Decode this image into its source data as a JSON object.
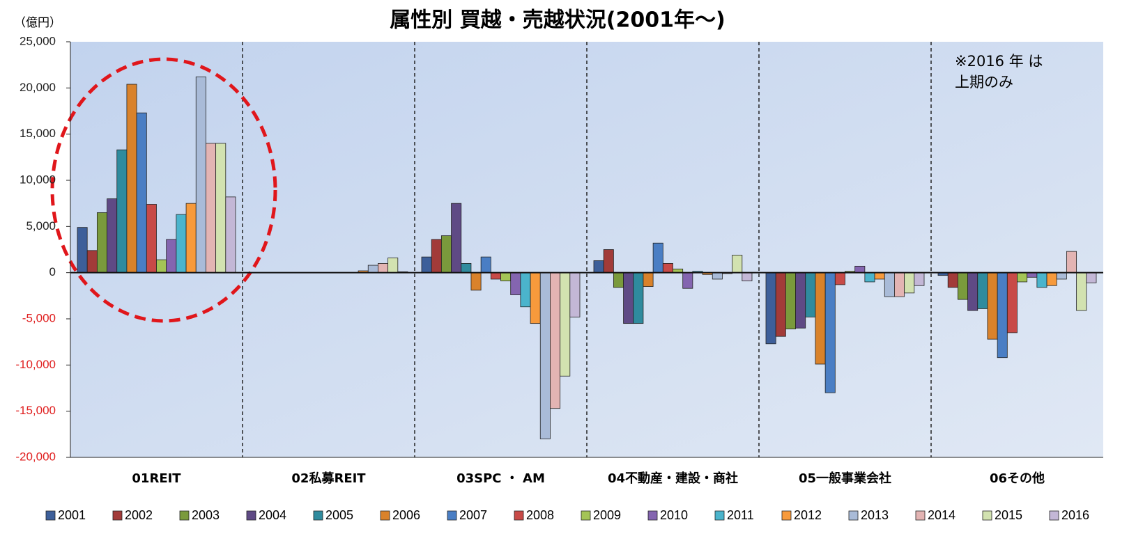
{
  "chart_data": {
    "type": "bar",
    "title": "属性別 買越・売越状況(2001年～)",
    "y_unit": "（億円）",
    "annotation": [
      "※2016 年 は",
      "上期のみ"
    ],
    "categories": [
      "01REIT",
      "02私募REIT",
      "03SPC ・ AM",
      "04不動産・建設・商社",
      "05一般事業会社",
      "06その他"
    ],
    "series": [
      {
        "name": "2001",
        "color": "#3d5f9a",
        "values": [
          4900,
          0,
          1700,
          1300,
          -7700,
          -300
        ]
      },
      {
        "name": "2002",
        "color": "#a23b39",
        "values": [
          2400,
          0,
          3600,
          2500,
          -6900,
          -1600
        ]
      },
      {
        "name": "2003",
        "color": "#7a9a3c",
        "values": [
          6500,
          0,
          4000,
          -1600,
          -6100,
          -2900
        ]
      },
      {
        "name": "2004",
        "color": "#5f4a85",
        "values": [
          8000,
          0,
          7500,
          -5500,
          -6000,
          -4100
        ]
      },
      {
        "name": "2005",
        "color": "#2f8b9e",
        "values": [
          13300,
          0,
          1000,
          -5500,
          -4800,
          -3900
        ]
      },
      {
        "name": "2006",
        "color": "#d9822b",
        "values": [
          20400,
          0,
          -1900,
          -1500,
          -9900,
          -7200
        ]
      },
      {
        "name": "2007",
        "color": "#4a7ec4",
        "values": [
          17300,
          0,
          1700,
          3200,
          -13000,
          -9200
        ]
      },
      {
        "name": "2008",
        "color": "#c84a47",
        "values": [
          7400,
          0,
          -700,
          1000,
          -1300,
          -6500
        ]
      },
      {
        "name": "2009",
        "color": "#a4c456",
        "values": [
          1400,
          0,
          -900,
          400,
          150,
          -1000
        ]
      },
      {
        "name": "2010",
        "color": "#8465b0",
        "values": [
          3600,
          0,
          -2400,
          -1700,
          700,
          -500
        ]
      },
      {
        "name": "2011",
        "color": "#4bb4cc",
        "values": [
          6300,
          0,
          -3700,
          150,
          -1000,
          -1600
        ]
      },
      {
        "name": "2012",
        "color": "#f79a3c",
        "values": [
          7500,
          200,
          -5500,
          -200,
          -700,
          -1400
        ]
      },
      {
        "name": "2013",
        "color": "#a9bbd8",
        "values": [
          21200,
          800,
          -18000,
          -700,
          -2600,
          -700
        ]
      },
      {
        "name": "2014",
        "color": "#e3b4b3",
        "values": [
          14000,
          1000,
          -14700,
          -100,
          -2600,
          2300
        ]
      },
      {
        "name": "2015",
        "color": "#d2e2b0",
        "values": [
          14000,
          1600,
          -11200,
          1900,
          -2200,
          -4100
        ]
      },
      {
        "name": "2016",
        "color": "#c3b7d6",
        "values": [
          8200,
          100,
          -4800,
          -900,
          -1400,
          -1100
        ]
      }
    ],
    "ylim": [
      -20000,
      25000
    ],
    "yticks": [
      {
        "value": -20000,
        "label": "-20,000"
      },
      {
        "value": -15000,
        "label": "-15,000"
      },
      {
        "value": -10000,
        "label": "-10,000"
      },
      {
        "value": -5000,
        "label": "-5,000"
      },
      0,
      {
        "value": 5000,
        "label": "5,000"
      },
      {
        "value": 10000,
        "label": "10,000"
      },
      {
        "value": 15000,
        "label": "15,000"
      },
      {
        "value": 20000,
        "label": "20,000"
      },
      {
        "value": 25000,
        "label": "25,000"
      }
    ],
    "negative_tick_color": "#e02020",
    "legend": "bottom"
  }
}
